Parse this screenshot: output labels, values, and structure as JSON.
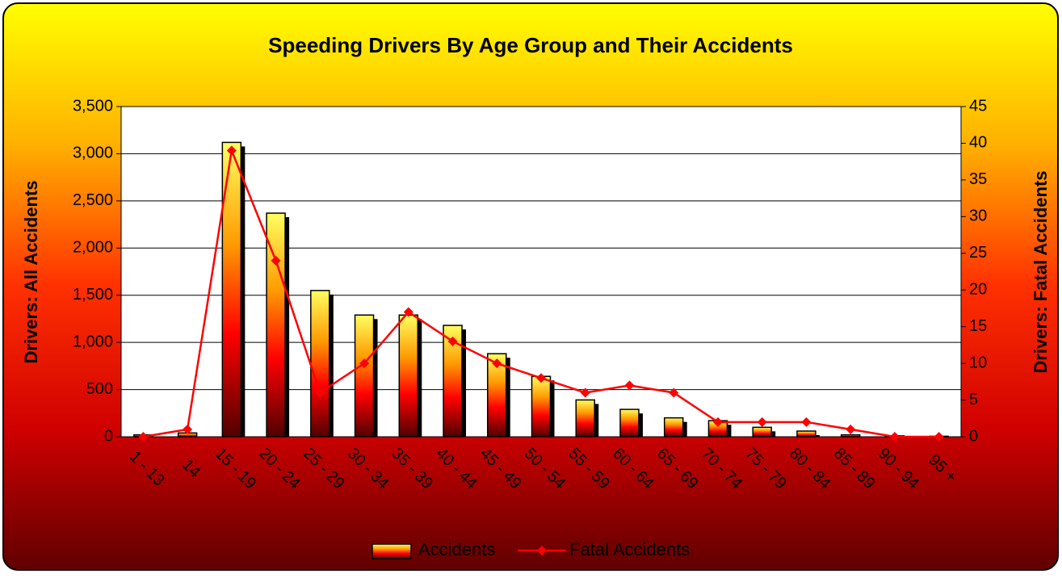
{
  "chart_data": {
    "type": "bar-line",
    "title": "Speeding Drivers By Age Group and Their Accidents",
    "y_label": "Drivers: All Accidents",
    "y2_label": "Drivers: Fatal Accidents",
    "categories": [
      "1 - 13",
      "14",
      "15 - 19",
      "20 - 24",
      "25 - 29",
      "30 - 34",
      "35 - 39",
      "40 - 44",
      "45 - 49",
      "50 - 54",
      "55 - 59",
      "60 - 64",
      "65 - 69",
      "70 - 74",
      "75 - 79",
      "80 - 84",
      "85 - 89",
      "90 - 94",
      "95 +"
    ],
    "series": [
      {
        "name": "Accidents",
        "color": "#ff9900",
        "values": [
          20,
          40,
          3120,
          2370,
          1550,
          1290,
          1290,
          1180,
          880,
          640,
          390,
          290,
          200,
          170,
          100,
          60,
          20,
          10,
          5
        ]
      },
      {
        "name": "Fatal Accidents",
        "color": "#ff0000",
        "axis": "y2",
        "values": [
          0,
          1,
          39,
          24,
          6,
          10,
          17,
          13,
          10,
          8,
          6,
          7,
          6,
          2,
          2,
          2,
          1,
          0,
          0
        ]
      }
    ],
    "ylim": [
      0,
      3500
    ],
    "yticks": [
      0,
      500,
      {
        "value": 1000,
        "label": "1,000"
      },
      {
        "value": 1500,
        "label": "1,500"
      },
      {
        "value": 2000,
        "label": "2,000"
      },
      {
        "value": 2500,
        "label": "2,500"
      },
      {
        "value": 3000,
        "label": "3,000"
      },
      {
        "value": 3500,
        "label": "3,500"
      }
    ],
    "y2lim": [
      0,
      45
    ],
    "y2ticks": [
      0,
      5,
      10,
      15,
      20,
      25,
      30,
      35,
      40,
      45
    ],
    "grid": true,
    "legend": "bottom"
  }
}
